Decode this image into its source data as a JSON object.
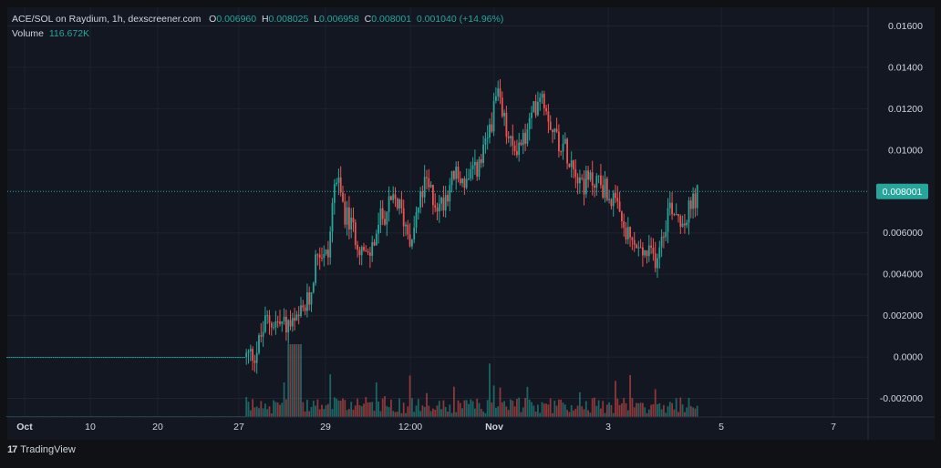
{
  "legend": {
    "pair": "ACE/SOL on Raydium, 1h, dexscreener.com",
    "o_label": "O",
    "o_value": "0.006960",
    "h_label": "H",
    "h_value": "0.008025",
    "l_label": "L",
    "l_value": "0.006958",
    "c_label": "C",
    "c_value": "0.008001",
    "change": "0.001040 (+14.96%)",
    "volume_label": "Volume",
    "volume_value": "116.672K"
  },
  "branding": {
    "logo_text": "TradingView",
    "logo_mark": "17"
  },
  "colors": {
    "up": "#26a69a",
    "down": "#ef5350",
    "background": "#131722",
    "grid": "#1e222d",
    "text": "#d1d4dc",
    "price_tag": "#26a69a"
  },
  "chart_data": {
    "type": "candlestick",
    "price_axis_ticks": [
      "0.01600",
      "0.01400",
      "0.01200",
      "0.01000",
      "0.006000",
      "0.004000",
      "0.002000",
      "0.0000",
      "-0.002000"
    ],
    "price_axis_values": [
      0.016,
      0.014,
      0.012,
      0.01,
      0.006,
      0.004,
      0.002,
      0.0,
      -0.002
    ],
    "ylim": [
      -0.0029,
      0.0169
    ],
    "time_axis_ticks": [
      "Oct",
      "10",
      "20",
      "27",
      "29",
      "12:00",
      "Nov",
      "3",
      "5",
      "7"
    ],
    "time_axis_bold": [
      "Oct",
      "Nov"
    ],
    "last_price": "0.008001",
    "last_price_value": 0.008001,
    "grid": true,
    "close_anchors": [
      [
        0,
        0
      ],
      [
        0.33,
        0
      ],
      [
        0.345,
        0.0002
      ],
      [
        0.36,
        0.0018
      ],
      [
        0.38,
        0.0016
      ],
      [
        0.4,
        0.0015
      ],
      [
        0.42,
        0.0028
      ],
      [
        0.43,
        0.0052
      ],
      [
        0.445,
        0.0048
      ],
      [
        0.455,
        0.0088
      ],
      [
        0.47,
        0.0068
      ],
      [
        0.485,
        0.0058
      ],
      [
        0.5,
        0.0046
      ],
      [
        0.52,
        0.0068
      ],
      [
        0.54,
        0.0076
      ],
      [
        0.56,
        0.0058
      ],
      [
        0.58,
        0.0084
      ],
      [
        0.6,
        0.0072
      ],
      [
        0.62,
        0.0088
      ],
      [
        0.64,
        0.0084
      ],
      [
        0.66,
        0.0096
      ],
      [
        0.68,
        0.0126
      ],
      [
        0.7,
        0.01
      ],
      [
        0.72,
        0.0106
      ],
      [
        0.74,
        0.013
      ],
      [
        0.76,
        0.0108
      ],
      [
        0.78,
        0.0098
      ],
      [
        0.8,
        0.0084
      ],
      [
        0.82,
        0.0086
      ],
      [
        0.84,
        0.0076
      ],
      [
        0.86,
        0.0058
      ],
      [
        0.88,
        0.005
      ],
      [
        0.9,
        0.0048
      ],
      [
        0.92,
        0.0074
      ],
      [
        0.94,
        0.0066
      ],
      [
        0.96,
        0.008
      ]
    ]
  }
}
